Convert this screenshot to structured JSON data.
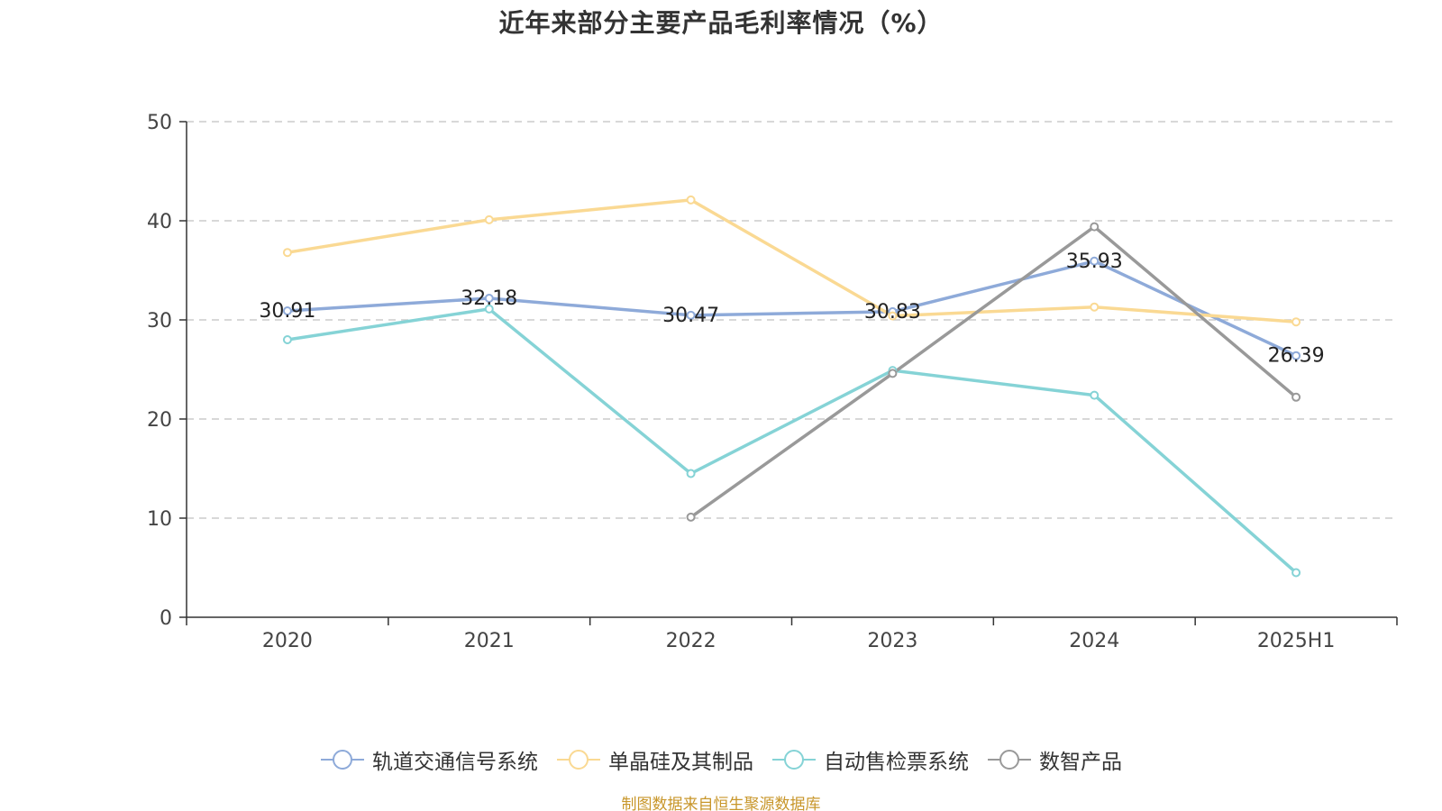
{
  "chart_data": {
    "type": "line",
    "title": "近年来部分主要产品毛利率情况（%）",
    "categories": [
      "2020",
      "2021",
      "2022",
      "2023",
      "2024",
      "2025H1"
    ],
    "ylim": [
      0,
      50
    ],
    "yticks": [
      0,
      10,
      20,
      30,
      40,
      50
    ],
    "grid": true,
    "legend_position": "bottom",
    "series": [
      {
        "name": "轨道交通信号系统",
        "color": "#8eaad9",
        "values": [
          30.91,
          32.18,
          30.47,
          30.83,
          35.93,
          26.39
        ],
        "labels": [
          "30.91",
          "32.18",
          "30.47",
          "30.83",
          "35.93",
          "26.39"
        ]
      },
      {
        "name": "单晶硅及其制品",
        "color": "#fad993",
        "values": [
          36.8,
          40.1,
          42.1,
          30.4,
          31.3,
          29.8
        ]
      },
      {
        "name": "自动售检票系统",
        "color": "#85d3d6",
        "values": [
          28.0,
          31.1,
          14.5,
          24.9,
          22.4,
          4.5
        ]
      },
      {
        "name": "数智产品",
        "color": "#999999",
        "values": [
          null,
          null,
          10.1,
          24.6,
          39.4,
          22.2
        ]
      }
    ]
  },
  "source_note": "制图数据来自恒生聚源数据库"
}
